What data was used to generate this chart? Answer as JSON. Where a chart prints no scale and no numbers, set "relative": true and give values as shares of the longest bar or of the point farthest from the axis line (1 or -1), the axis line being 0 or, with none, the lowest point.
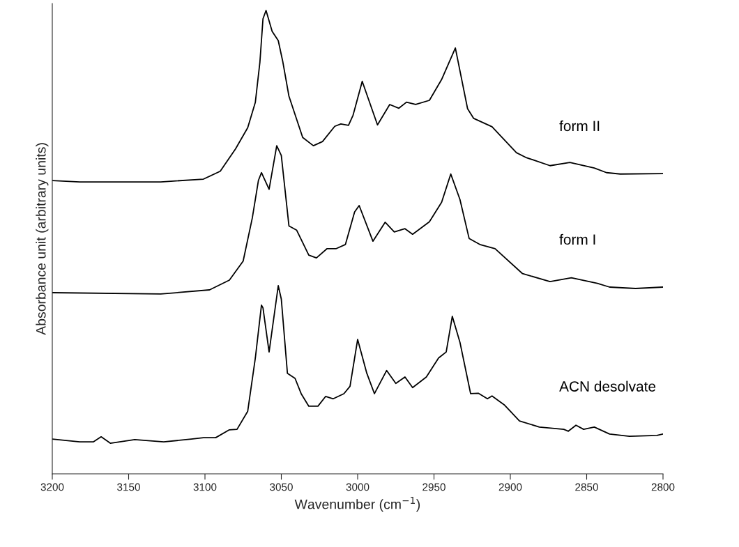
{
  "chart_data": {
    "type": "line",
    "relative": true,
    "xlabel": "Wavenumber (cm$^{−1}$)",
    "ylabel": "Absorbance unit (arbitrary units)",
    "xlim": [
      3200,
      2800
    ],
    "xticks": [
      3200,
      3150,
      3100,
      3050,
      3000,
      2950,
      2900,
      2850,
      2800
    ],
    "tick_labels": "x",
    "grid": false,
    "legend": false,
    "series": [
      {
        "name": "form II",
        "color": "#000000",
        "x": [
          3200,
          3182,
          3129,
          3101,
          3090,
          3080,
          3072,
          3067,
          3064,
          3062,
          3060,
          3056,
          3052,
          3049,
          3045,
          3036,
          3029,
          3023,
          3015,
          3011,
          3006,
          3003,
          2997,
          2987,
          2979,
          2973,
          2968,
          2962,
          2953,
          2945,
          2936,
          2928,
          2924,
          2912,
          2896,
          2890,
          2874,
          2861,
          2845,
          2837,
          2828,
          2800
        ],
        "values": [
          0.633,
          0.63,
          0.63,
          0.636,
          0.653,
          0.701,
          0.747,
          0.802,
          0.889,
          0.982,
          1.0,
          0.955,
          0.935,
          0.889,
          0.815,
          0.726,
          0.708,
          0.717,
          0.75,
          0.755,
          0.752,
          0.774,
          0.847,
          0.753,
          0.797,
          0.789,
          0.802,
          0.797,
          0.806,
          0.851,
          0.919,
          0.788,
          0.767,
          0.749,
          0.693,
          0.683,
          0.665,
          0.672,
          0.66,
          0.65,
          0.647,
          0.648
        ]
      },
      {
        "name": "form I",
        "color": "#000000",
        "x": [
          3200,
          3129,
          3097,
          3084,
          3075,
          3069,
          3065,
          3063,
          3058,
          3053,
          3050,
          3045,
          3040,
          3032,
          3027,
          3020,
          3014,
          3008,
          3002,
          2999,
          2990,
          2982,
          2976,
          2969,
          2964,
          2953,
          2945,
          2939,
          2933,
          2927,
          2920,
          2910,
          2892,
          2874,
          2860,
          2843,
          2835,
          2818,
          2800
        ],
        "values": [
          0.391,
          0.388,
          0.397,
          0.418,
          0.459,
          0.552,
          0.633,
          0.65,
          0.614,
          0.708,
          0.687,
          0.535,
          0.526,
          0.472,
          0.466,
          0.486,
          0.486,
          0.495,
          0.565,
          0.579,
          0.502,
          0.543,
          0.522,
          0.529,
          0.517,
          0.544,
          0.586,
          0.647,
          0.592,
          0.508,
          0.495,
          0.486,
          0.432,
          0.415,
          0.423,
          0.411,
          0.403,
          0.4,
          0.403
        ]
      },
      {
        "name": "ACN desolvate",
        "color": "#000000",
        "x": [
          3200,
          3182,
          3173,
          3168,
          3162,
          3146,
          3127,
          3109,
          3101,
          3093,
          3084,
          3079,
          3072,
          3067,
          3063,
          3062,
          3058,
          3052,
          3050,
          3046,
          3041,
          3037,
          3032,
          3026,
          3021,
          3016,
          3009,
          3005,
          3000,
          2994,
          2989,
          2981,
          2975,
          2969,
          2964,
          2955,
          2947,
          2942,
          2938,
          2933,
          2926,
          2921,
          2915,
          2912,
          2904,
          2894,
          2881,
          2865,
          2862,
          2857,
          2852,
          2845,
          2835,
          2822,
          2804,
          2800
        ],
        "values": [
          0.075,
          0.069,
          0.069,
          0.08,
          0.066,
          0.074,
          0.069,
          0.075,
          0.078,
          0.078,
          0.095,
          0.096,
          0.135,
          0.25,
          0.364,
          0.358,
          0.263,
          0.406,
          0.377,
          0.217,
          0.206,
          0.173,
          0.146,
          0.146,
          0.167,
          0.162,
          0.173,
          0.189,
          0.29,
          0.217,
          0.173,
          0.223,
          0.195,
          0.209,
          0.186,
          0.209,
          0.25,
          0.263,
          0.34,
          0.284,
          0.173,
          0.174,
          0.162,
          0.168,
          0.149,
          0.114,
          0.101,
          0.096,
          0.092,
          0.105,
          0.096,
          0.101,
          0.086,
          0.081,
          0.083,
          0.086
        ]
      }
    ]
  }
}
